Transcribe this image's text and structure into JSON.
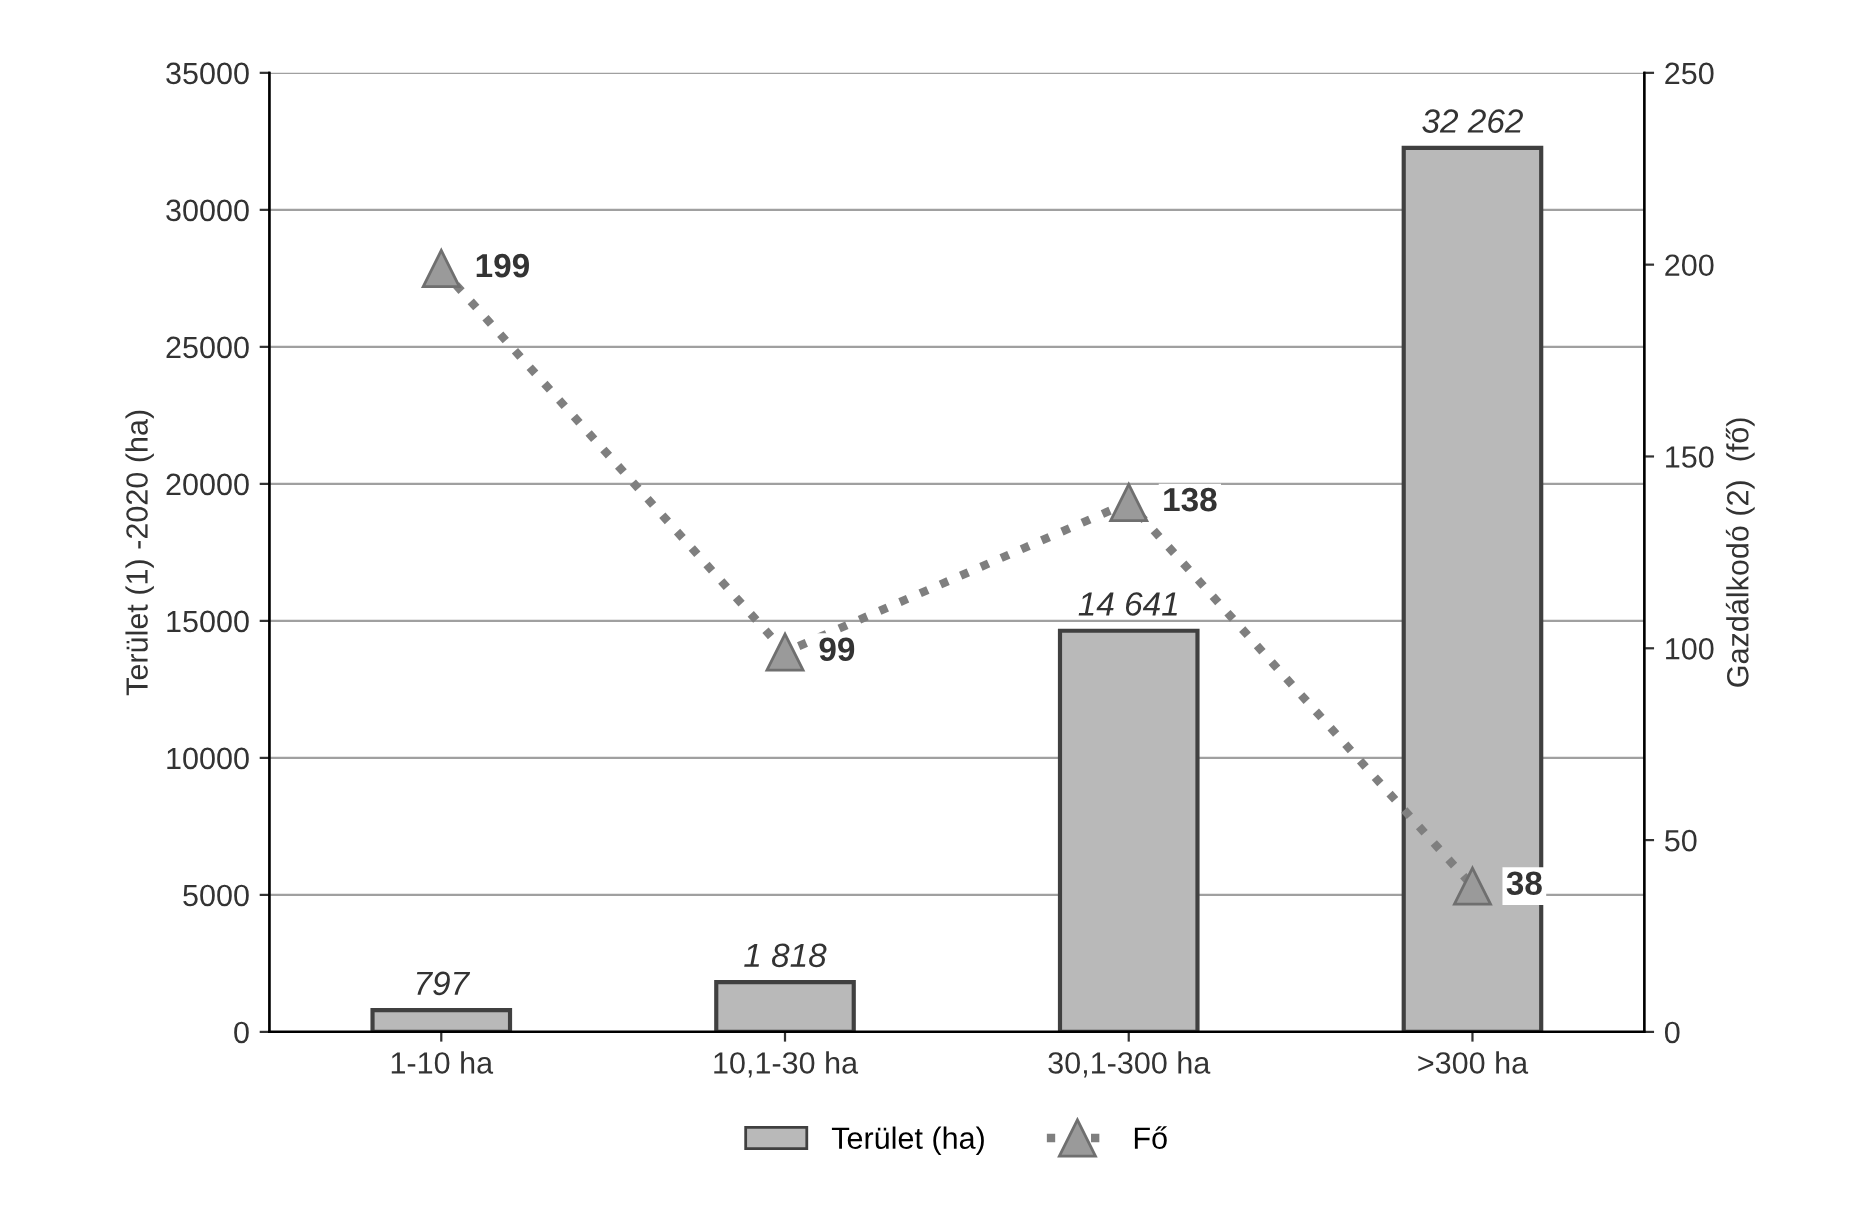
{
  "chart_data": {
    "type": "bar",
    "categories": [
      "1-10 ha",
      "10,1-30 ha",
      "30,1-300 ha",
      ">300 ha"
    ],
    "ylabel": "Terület (1) -2020 (ha)",
    "y2label": "Gazdálkodó (2)  (fő)",
    "ylim": [
      0,
      35000
    ],
    "yticks": [
      0,
      5000,
      10000,
      15000,
      20000,
      25000,
      30000,
      35000
    ],
    "y2lim": [
      0,
      250
    ],
    "y2ticks": [
      0,
      50,
      100,
      150,
      200,
      250
    ],
    "grid": "y",
    "legend": "bottom",
    "series": [
      {
        "name": "Terület (ha)",
        "color": "#b9b9b9",
        "values": [
          797,
          1818,
          14641,
          32262
        ],
        "value_labels": [
          "797",
          "1 818",
          "14 641",
          "32 262"
        ]
      },
      {
        "name": "Fő",
        "type": "line",
        "axis": "y2",
        "color": "#7f7f7f",
        "marker": "triangle",
        "line_style": "dotted",
        "values": [
          199,
          99,
          138,
          38
        ],
        "value_labels": [
          "199",
          "99",
          "138",
          "38"
        ]
      }
    ]
  }
}
